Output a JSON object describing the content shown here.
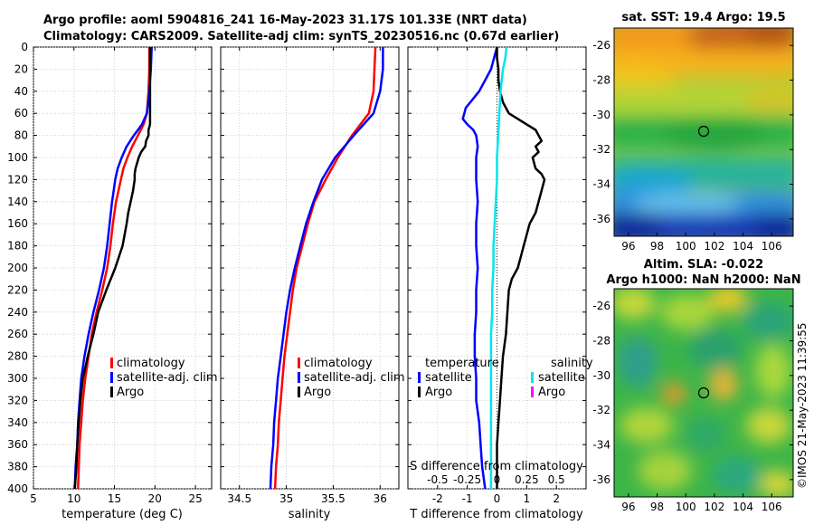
{
  "title_line1": "Argo profile: aoml 5904816_241 16-May-2023 31.17S 101.33E (NRT data)",
  "title_line2": "Climatology: CARS2009. Satellite-adj clim: synTS_20230516.nc (0.67d earlier)",
  "credit": "©IMOS 21-May-2023 11:39:55",
  "colors": {
    "climatology": "#ff0000",
    "satellite": "#0000ff",
    "argo": "#000000",
    "sal_satellite": "#00e5ee",
    "sal_argo": "#ff00ff"
  },
  "chart_data": [
    {
      "type": "line",
      "name": "temperature-profile",
      "xlabel": "temperature (deg C)",
      "ylabel": "",
      "xlim": [
        5,
        27
      ],
      "ylim": [
        0,
        400
      ],
      "y_inverted": true,
      "xticks": [
        5,
        10,
        15,
        20,
        25
      ],
      "yticks": [
        0,
        20,
        40,
        60,
        80,
        100,
        120,
        140,
        160,
        180,
        200,
        220,
        240,
        260,
        280,
        300,
        320,
        340,
        360,
        380,
        400
      ],
      "legend": [
        "climatology",
        "satellite-adj. clim",
        "Argo"
      ],
      "series": [
        {
          "name": "climatology",
          "depth": [
            0,
            20,
            40,
            60,
            70,
            80,
            90,
            100,
            110,
            120,
            130,
            140,
            160,
            180,
            200,
            220,
            240,
            260,
            280,
            300,
            320,
            340,
            360,
            380,
            400
          ],
          "values": [
            19.3,
            19.3,
            19.2,
            19.0,
            18.6,
            17.9,
            17.2,
            16.6,
            16.1,
            15.8,
            15.5,
            15.2,
            14.8,
            14.5,
            14.1,
            13.5,
            12.8,
            12.2,
            11.8,
            11.4,
            11.1,
            10.9,
            10.7,
            10.6,
            10.5
          ]
        },
        {
          "name": "satellite-adj. clim",
          "depth": [
            0,
            20,
            40,
            60,
            70,
            80,
            90,
            100,
            110,
            120,
            130,
            140,
            160,
            180,
            200,
            220,
            240,
            260,
            280,
            300,
            320,
            340,
            360,
            380,
            400
          ],
          "values": [
            19.6,
            19.5,
            19.3,
            19.0,
            18.4,
            17.4,
            16.5,
            15.9,
            15.4,
            15.1,
            14.9,
            14.7,
            14.4,
            14.1,
            13.7,
            13.1,
            12.4,
            11.8,
            11.3,
            10.9,
            10.7,
            10.5,
            10.4,
            10.2,
            10.1
          ]
        },
        {
          "name": "Argo",
          "depth": [
            0,
            20,
            40,
            60,
            70,
            75,
            80,
            85,
            90,
            95,
            100,
            105,
            110,
            115,
            120,
            130,
            140,
            150,
            160,
            180,
            200,
            220,
            240,
            260,
            280,
            300,
            320,
            340,
            360,
            380,
            400
          ],
          "values": [
            19.4,
            19.4,
            19.4,
            19.4,
            19.4,
            19.2,
            19.2,
            18.9,
            18.8,
            18.3,
            18.0,
            17.8,
            17.6,
            17.5,
            17.5,
            17.3,
            17.0,
            16.7,
            16.5,
            16.0,
            15.1,
            14.0,
            13.0,
            12.4,
            11.7,
            11.1,
            10.8,
            10.6,
            10.4,
            10.3,
            10.1
          ]
        }
      ]
    },
    {
      "type": "line",
      "name": "salinity-profile",
      "xlabel": "salinity",
      "ylabel": "",
      "xlim": [
        34.3,
        36.2
      ],
      "ylim": [
        0,
        400
      ],
      "y_inverted": true,
      "xticks": [
        34.5,
        35,
        35.5,
        36
      ],
      "legend": [
        "climatology",
        "satellite-adj. clim",
        "Argo"
      ],
      "series": [
        {
          "name": "climatology",
          "depth": [
            0,
            20,
            40,
            60,
            80,
            100,
            120,
            140,
            160,
            180,
            200,
            220,
            240,
            260,
            280,
            300,
            320,
            340,
            360,
            380,
            400
          ],
          "values": [
            35.95,
            35.94,
            35.93,
            35.88,
            35.7,
            35.55,
            35.42,
            35.3,
            35.23,
            35.17,
            35.11,
            35.07,
            35.04,
            35.01,
            34.98,
            34.96,
            34.94,
            34.92,
            34.91,
            34.89,
            34.88
          ]
        },
        {
          "name": "satellite-adj. clim",
          "depth": [
            0,
            20,
            40,
            60,
            80,
            100,
            120,
            140,
            160,
            180,
            200,
            220,
            240,
            260,
            280,
            300,
            320,
            340,
            360,
            380,
            400
          ],
          "values": [
            36.03,
            36.03,
            36.0,
            35.93,
            35.72,
            35.52,
            35.38,
            35.29,
            35.21,
            35.15,
            35.09,
            35.04,
            35.0,
            34.97,
            34.94,
            34.91,
            34.89,
            34.87,
            34.86,
            34.84,
            34.83
          ]
        }
      ]
    },
    {
      "type": "line",
      "name": "difference-profile",
      "xlabel": "T difference from climatology",
      "x2label": "S difference from climatology",
      "xlim": [
        -3,
        3
      ],
      "x2lim": [
        -0.75,
        0.75
      ],
      "ylim": [
        0,
        400
      ],
      "y_inverted": true,
      "xticks": [
        -2,
        -1,
        0,
        1,
        2
      ],
      "x2ticks": [
        "-0.5",
        "-0.25",
        "0",
        "0.25",
        "0.5"
      ],
      "legend_temperature_title": "temperature",
      "legend_temperature": [
        "satellite",
        "Argo"
      ],
      "legend_salinity_title": "salinity",
      "legend_salinity": [
        "satellite",
        "Argo"
      ],
      "series": [
        {
          "name": "T satellite",
          "depth": [
            0,
            10,
            20,
            30,
            40,
            50,
            55,
            60,
            65,
            70,
            75,
            80,
            90,
            100,
            120,
            140,
            160,
            180,
            200,
            220,
            240,
            260,
            280,
            300,
            320,
            340,
            360,
            380,
            400
          ],
          "values": [
            0.0,
            -0.1,
            -0.2,
            -0.4,
            -0.6,
            -0.9,
            -1.05,
            -1.1,
            -1.15,
            -1.0,
            -0.8,
            -0.7,
            -0.65,
            -0.7,
            -0.7,
            -0.65,
            -0.7,
            -0.7,
            -0.65,
            -0.7,
            -0.7,
            -0.75,
            -0.75,
            -0.7,
            -0.7,
            -0.6,
            -0.55,
            -0.5,
            -0.4
          ]
        },
        {
          "name": "T Argo",
          "depth": [
            0,
            10,
            20,
            30,
            40,
            50,
            60,
            65,
            70,
            75,
            80,
            85,
            90,
            95,
            100,
            105,
            110,
            115,
            120,
            130,
            140,
            150,
            160,
            170,
            180,
            190,
            200,
            210,
            220,
            240,
            260,
            280,
            300,
            320,
            340,
            360,
            380,
            400
          ],
          "values": [
            0.0,
            0.0,
            0.05,
            0.05,
            0.1,
            0.2,
            0.4,
            0.7,
            1.0,
            1.3,
            1.4,
            1.5,
            1.3,
            1.4,
            1.2,
            1.25,
            1.3,
            1.5,
            1.6,
            1.5,
            1.4,
            1.3,
            1.1,
            1.0,
            0.9,
            0.8,
            0.7,
            0.5,
            0.4,
            0.35,
            0.3,
            0.2,
            0.15,
            0.1,
            0.05,
            0.0,
            0.0,
            0.0
          ]
        },
        {
          "name": "S satellite",
          "depth": [
            0,
            10,
            20,
            40,
            60,
            80,
            100,
            120,
            140,
            160,
            180,
            200,
            220,
            240,
            260,
            280,
            300,
            320,
            340,
            360,
            380,
            400
          ],
          "values": [
            0.08,
            0.07,
            0.05,
            0.03,
            0.02,
            0.01,
            0.0,
            0.0,
            -0.01,
            -0.02,
            -0.03,
            -0.03,
            -0.04,
            -0.04,
            -0.05,
            -0.05,
            -0.05,
            -0.05,
            -0.05,
            -0.05,
            -0.05,
            -0.05
          ]
        }
      ]
    },
    {
      "type": "heatmap",
      "name": "sst-map",
      "title": "sat. SST: 19.4 Argo: 19.5",
      "xticks": [
        96,
        98,
        100,
        102,
        104,
        106
      ],
      "yticks": [
        -26,
        -28,
        -30,
        -32,
        -34,
        -36
      ],
      "xlim": [
        95,
        107.5
      ],
      "ylim": [
        -37,
        -25
      ],
      "marker": {
        "lon": 101.33,
        "lat": -31.17
      }
    },
    {
      "type": "heatmap",
      "name": "sla-map",
      "title_line1": "Altim. SLA: -0.022",
      "title_line2": "Argo h1000: NaN h2000: NaN",
      "xticks": [
        96,
        98,
        100,
        102,
        104,
        106
      ],
      "yticks": [
        -26,
        -28,
        -30,
        -32,
        -34,
        -36
      ],
      "xlim": [
        95,
        107.5
      ],
      "ylim": [
        -37,
        -25
      ],
      "marker": {
        "lon": 101.33,
        "lat": -31.17
      }
    }
  ]
}
